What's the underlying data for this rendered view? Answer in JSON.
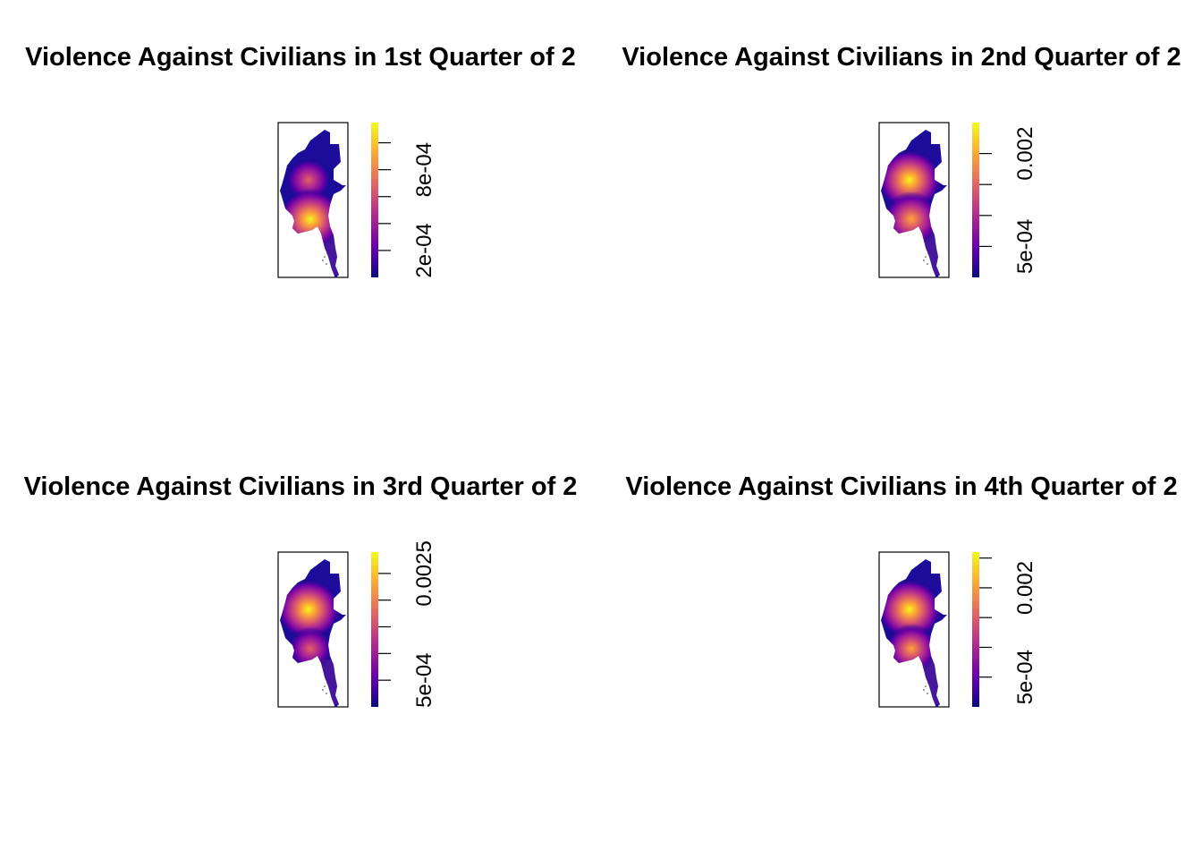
{
  "chart_data": [
    {
      "type": "heatmap",
      "title": "Violence Against Civilians in 1st Quarter of 2",
      "legend_ticks": [
        "2e-04",
        "8e-04"
      ],
      "legend_range": [
        0,
        0.00115
      ],
      "labeled_ticks_at": [
        0.0002,
        0.0008
      ],
      "minor_ticks_at": [
        0.0002,
        0.0004,
        0.0006,
        0.0008,
        0.001
      ],
      "hotspots": [
        {
          "region": "central",
          "level": 0.55
        },
        {
          "region": "south-central",
          "level": 1.0
        }
      ],
      "colormap": [
        "#0d0887",
        "#6a00a8",
        "#b12a90",
        "#e16462",
        "#fca636",
        "#f0f921"
      ]
    },
    {
      "type": "heatmap",
      "title": "Violence Against Civilians in 2nd Quarter of 2",
      "legend_ticks": [
        "5e-04",
        "0.002"
      ],
      "legend_range": [
        0,
        0.0025
      ],
      "labeled_ticks_at": [
        0.0005,
        0.002
      ],
      "minor_ticks_at": [
        0.0005,
        0.001,
        0.0015,
        0.002
      ],
      "hotspots": [
        {
          "region": "central",
          "level": 1.0
        },
        {
          "region": "south-central",
          "level": 0.85
        }
      ],
      "colormap": [
        "#0d0887",
        "#6a00a8",
        "#b12a90",
        "#e16462",
        "#fca636",
        "#f0f921"
      ]
    },
    {
      "type": "heatmap",
      "title": "Violence Against Civilians in 3rd Quarter of 2",
      "legend_ticks": [
        "5e-04",
        "0.0025"
      ],
      "legend_range": [
        0,
        0.0029
      ],
      "labeled_ticks_at": [
        0.0005,
        0.0025
      ],
      "minor_ticks_at": [
        0.0005,
        0.001,
        0.0015,
        0.002,
        0.0025
      ],
      "hotspots": [
        {
          "region": "central",
          "level": 1.0
        },
        {
          "region": "south-central",
          "level": 0.55
        }
      ],
      "colormap": [
        "#0d0887",
        "#6a00a8",
        "#b12a90",
        "#e16462",
        "#fca636",
        "#f0f921"
      ]
    },
    {
      "type": "heatmap",
      "title": "Violence Against Civilians in 4th Quarter of 2",
      "legend_ticks": [
        "5e-04",
        "0.002"
      ],
      "legend_range": [
        0,
        0.0026
      ],
      "labeled_ticks_at": [
        0.0005,
        0.002
      ],
      "minor_ticks_at": [
        0.0005,
        0.001,
        0.0015,
        0.002,
        0.0025
      ],
      "hotspots": [
        {
          "region": "central",
          "level": 1.0
        },
        {
          "region": "south-central",
          "level": 0.7
        }
      ],
      "colormap": [
        "#0d0887",
        "#6a00a8",
        "#b12a90",
        "#e16462",
        "#fca636",
        "#f0f921"
      ]
    }
  ]
}
